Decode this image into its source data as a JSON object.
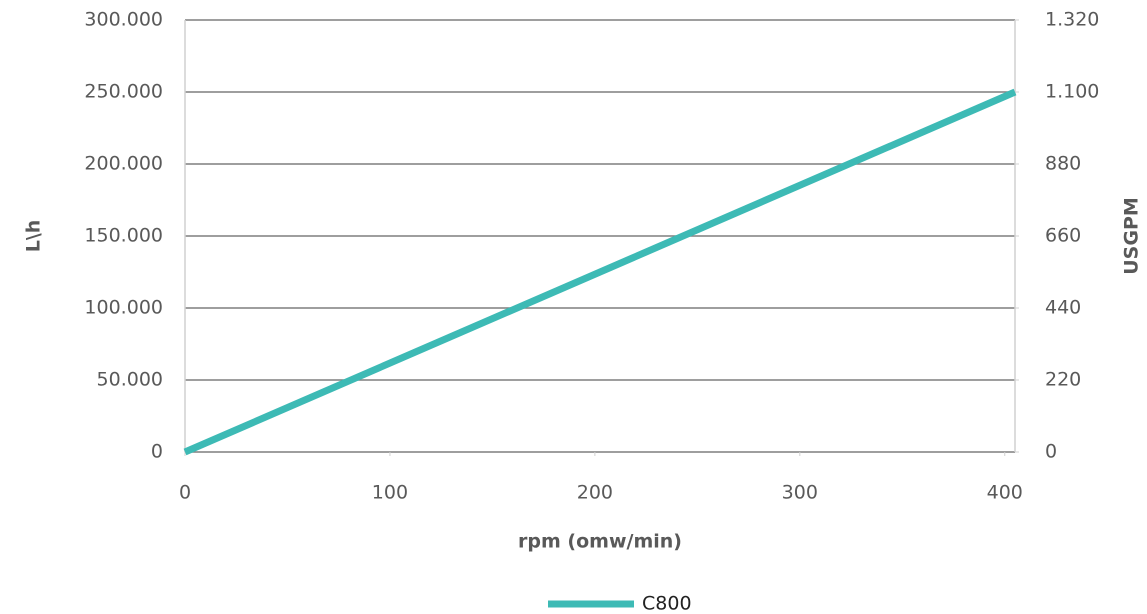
{
  "chart_data": {
    "type": "line",
    "x_label": "rpm (omw/min)",
    "y_label": "L\\h",
    "y2_label": "USGPM",
    "xlim": [
      0,
      405
    ],
    "xticks": [
      0,
      100,
      200,
      300,
      400
    ],
    "ylim": [
      0,
      300000
    ],
    "yticks": [
      0,
      {
        "value": 50000,
        "label": "50.000"
      },
      {
        "value": 100000,
        "label": "100.000"
      },
      {
        "value": 150000,
        "label": "150.000"
      },
      {
        "value": 200000,
        "label": "200.000"
      },
      {
        "value": 250000,
        "label": "250.000"
      },
      {
        "value": 300000,
        "label": "300.000"
      }
    ],
    "y2lim": [
      0,
      1320
    ],
    "y2ticks": [
      0,
      220,
      440,
      660,
      880,
      {
        "value": 1100,
        "label": "1.100"
      },
      {
        "value": 1320,
        "label": "1.320"
      }
    ],
    "grid": true,
    "series": [
      {
        "name": "C800",
        "color": "#3dbab5",
        "x": [
          0,
          405
        ],
        "values": [
          0,
          250000
        ]
      }
    ]
  }
}
